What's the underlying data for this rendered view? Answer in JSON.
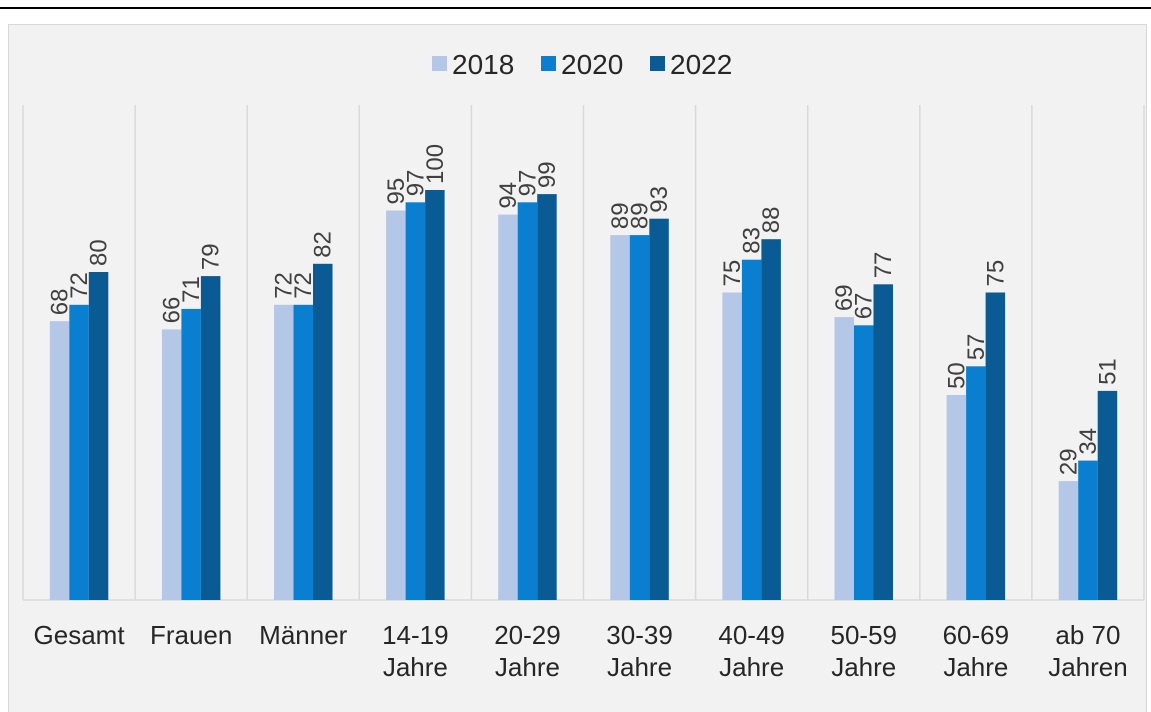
{
  "chart_data": {
    "type": "bar",
    "categories": [
      [
        "Gesamt"
      ],
      [
        "Frauen"
      ],
      [
        "Männer"
      ],
      [
        "14-19",
        "Jahre"
      ],
      [
        "20-29",
        "Jahre"
      ],
      [
        "30-39",
        "Jahre"
      ],
      [
        "40-49",
        "Jahre"
      ],
      [
        "50-59",
        "Jahre"
      ],
      [
        "60-69",
        "Jahre"
      ],
      [
        "ab 70",
        "Jahren"
      ]
    ],
    "series": [
      {
        "name": "2018",
        "color": "#b4c7e7",
        "values": [
          68,
          66,
          72,
          95,
          94,
          89,
          75,
          69,
          50,
          29
        ]
      },
      {
        "name": "2020",
        "color": "#0a7fd0",
        "values": [
          72,
          71,
          72,
          97,
          97,
          89,
          83,
          67,
          57,
          34
        ]
      },
      {
        "name": "2022",
        "color": "#0a5b94",
        "values": [
          80,
          79,
          82,
          100,
          99,
          93,
          88,
          77,
          75,
          51
        ]
      }
    ],
    "ylim": [
      0,
      100
    ],
    "legend_position": "top-center",
    "grid": "vertical category separators",
    "data_labels": "rotated vertical above bars"
  }
}
